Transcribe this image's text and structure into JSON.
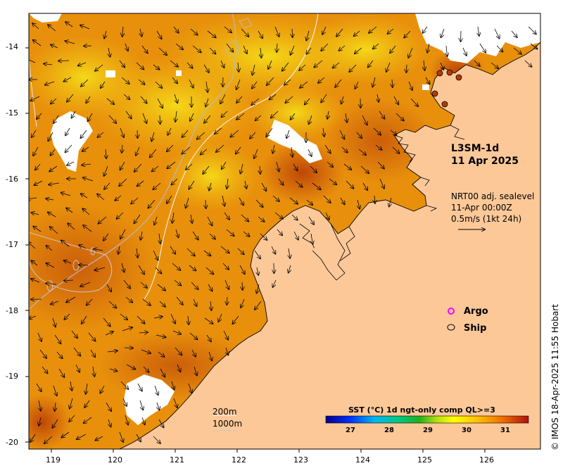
{
  "map": {
    "lat_ticks": [
      "-14",
      "-15",
      "-16",
      "-17",
      "-18",
      "-19",
      "-20"
    ],
    "lon_ticks": [
      "119",
      "120",
      "121",
      "122",
      "123",
      "124",
      "125",
      "126"
    ],
    "colors": {
      "land": "#fcc898",
      "cloud_gap": "#ffffff",
      "sst_warm": "#e8900c",
      "sst_hot": "#b83a08",
      "sst_cool": "#f2cc10",
      "contour": "#c0c0c0",
      "coastline": "#000000"
    }
  },
  "product": {
    "line1": "L3SM-1d",
    "line2": "11 Apr 2025"
  },
  "model": {
    "line1": "NRT00 adj. sealevel",
    "line2": "11-Apr 00:00Z",
    "line3": "0.5m/s (1kt 24h)"
  },
  "legend": {
    "argo": "Argo",
    "ship": "Ship",
    "argo_color": "#ff00ff"
  },
  "isobaths": {
    "a": "200m",
    "b": "1000m"
  },
  "colorbar": {
    "title": "SST (°C) 1d ngt-only comp QL>=3",
    "ticks": [
      "27",
      "28",
      "29",
      "30",
      "31"
    ]
  },
  "credit": "© IMOS 18-Apr-2025 11:55 Hobart"
}
